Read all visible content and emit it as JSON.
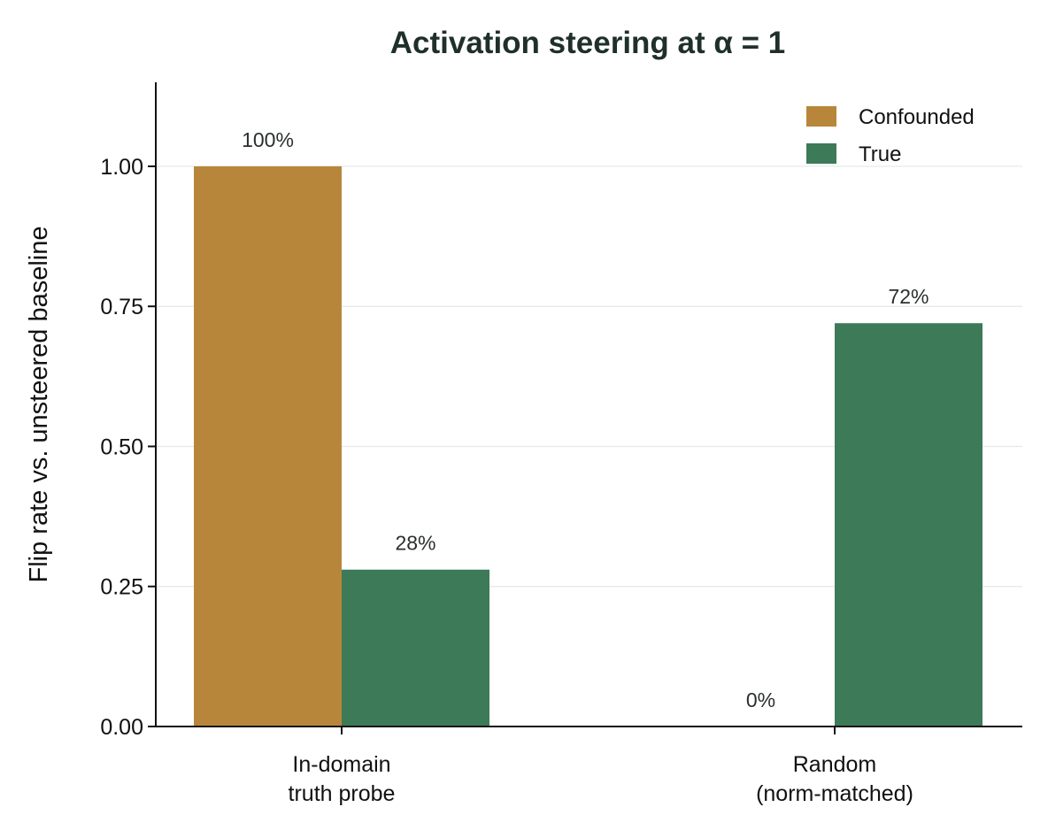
{
  "chart_data": {
    "type": "bar",
    "title": "Activation steering at α = 1",
    "ylabel": "Flip rate vs. unsteered baseline",
    "xlabel": "",
    "ylim": [
      0,
      1.15
    ],
    "yticks": [
      "0.00",
      "0.25",
      "0.50",
      "0.75",
      "1.00"
    ],
    "ytick_values": [
      0,
      0.25,
      0.5,
      0.75,
      1.0
    ],
    "grid": true,
    "legend_position": "top-right",
    "categories": [
      [
        "In-domain",
        "truth probe"
      ],
      [
        "Random",
        "(norm-matched)"
      ]
    ],
    "series": [
      {
        "name": "Confounded",
        "color": "#b8863b",
        "values": [
          1.0,
          0.0
        ],
        "labels": [
          "100%",
          "0%"
        ]
      },
      {
        "name": "True",
        "color": "#3d7a58",
        "values": [
          0.28,
          0.72
        ],
        "labels": [
          "28%",
          "72%"
        ]
      }
    ]
  }
}
